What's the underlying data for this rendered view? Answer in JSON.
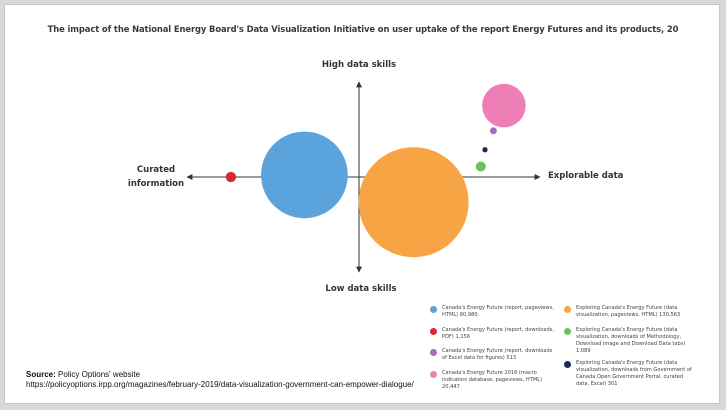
{
  "chart_data": {
    "type": "bubble",
    "title": "The impact of the National Energy Board's Data Visualization Initiative on user uptake of the report Energy Futures and its products, 20",
    "quadrant_labels": {
      "top": "High data skills",
      "bottom": "Low data skills",
      "left_line1": "Curated",
      "left_line2": "information",
      "right": "Explorable data"
    },
    "series": [
      {
        "name": "Canada's Energy Future (report, pageviews, HTML) 80,980",
        "value": 80980,
        "color": "#5ba3dc",
        "x": -2.6,
        "y": 0.1
      },
      {
        "name": "Canada's Energy Future (report, downloads, PDF) 1,156",
        "value": 1156,
        "color": "#d42a30",
        "x": -6.1,
        "y": 0.0
      },
      {
        "name": "Canada's Energy Future (report, downloads of Excel data for figures) 513",
        "value": 513,
        "color": "#a86bbd",
        "x": 6.4,
        "y": 2.2
      },
      {
        "name": "Canada's Energy Future 2016 (macro indicators database, pageviews, HTML) 20,447",
        "value": 20447,
        "color": "#ee7fb6",
        "x": 6.9,
        "y": 3.4
      },
      {
        "name": "Exploring Canada's Energy Future (data visualization, pageviews, HTML) 130,563",
        "value": 130563,
        "color": "#f7a444",
        "x": 2.6,
        "y": -1.2
      },
      {
        "name": "Exploring Canada's Energy Future (data visualization, downloads of Methodology, Download image and Download Data tabs) 1,089",
        "value": 1089,
        "color": "#6ec05c",
        "x": 5.8,
        "y": 0.5
      },
      {
        "name": "Exploring Canada's Energy Future (data visualization, downloads from Government of Canada Open Government Portal, curated data, Excel) 301",
        "value": 301,
        "color": "#1f2a5c",
        "x": 6.0,
        "y": 1.3
      }
    ]
  },
  "legend": {
    "items": [
      {
        "label": "Canada's Energy Future (report, pageviews, HTML)  80,980",
        "color": "#5ba3dc"
      },
      {
        "label": "Canada's Energy Future (report, downloads, PDF) 1,156",
        "color": "#d42a30"
      },
      {
        "label": "Canada's Energy Future (report, downloads of Excel data for figures)  513",
        "color": "#a86bbd"
      },
      {
        "label": "Canada's Energy Future 2016 (macro indicators database, pageviews, HTML) 20,447",
        "color": "#ee7fb6"
      },
      {
        "label": "Exploring Canada's Energy Future (data visualization, pageviews, HTML) 130,563",
        "color": "#f7a444"
      },
      {
        "label": "Exploring Canada's Energy Future (data visualization, downloads of Methodology, Download image and Download Data tabs) 1,089",
        "color": "#6ec05c"
      },
      {
        "label": "Exploring Canada's Energy Future (data visualization, downloads from Government of Canada Open Government Portal, curated data, Excel) 301",
        "color": "#1f2a5c"
      }
    ]
  },
  "source": {
    "label": "Source:",
    "text": "Policy Options' website",
    "url": "https://policyoptions.irpp.org/magazines/february-2019/data-visualization-government-can-empower-dialogue/"
  }
}
